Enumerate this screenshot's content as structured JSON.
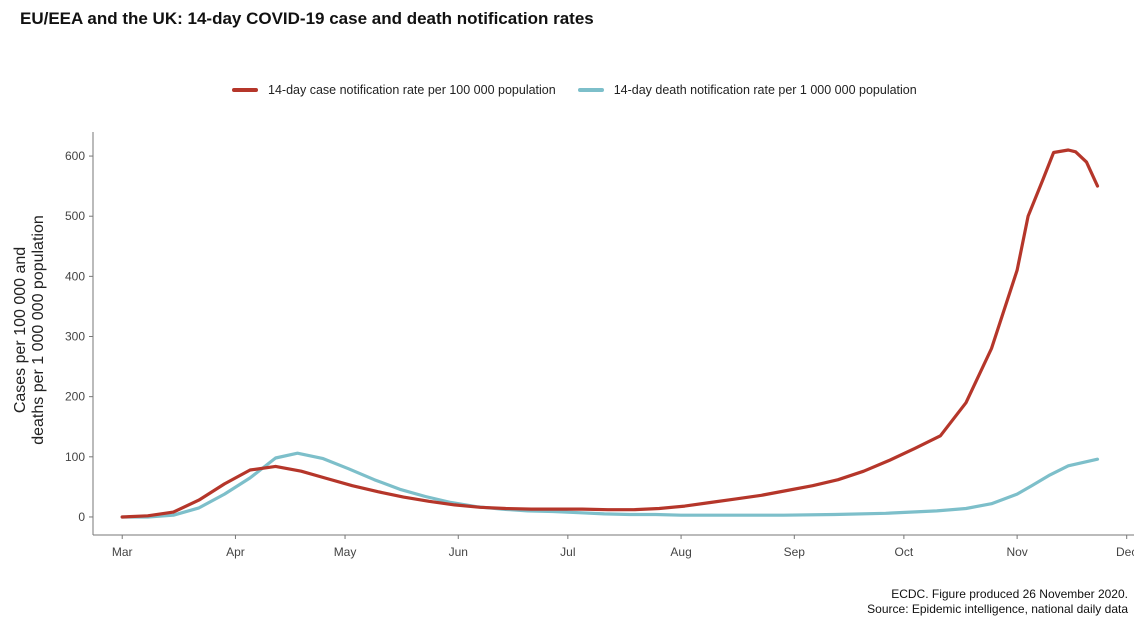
{
  "chart_data": {
    "type": "line",
    "title": "EU/EEA and the UK: 14-day COVID-19 case and death notification rates",
    "ylabel_line1": "Cases per 100 000 and",
    "ylabel_line2": "deaths per 1 000 000 population",
    "xlabel": "",
    "x_tick_labels": [
      "Mar",
      "Apr",
      "May",
      "Jun",
      "Jul",
      "Aug",
      "Sep",
      "Oct",
      "Nov",
      "Dec"
    ],
    "y_ticks": [
      0,
      100,
      200,
      300,
      400,
      500,
      600
    ],
    "ylim": [
      -30,
      640
    ],
    "xlim": [
      "2020-02-22",
      "2020-12-03"
    ],
    "legend_position": "top",
    "grid": false,
    "series": [
      {
        "name": "14-day case notification rate per 100 000 population",
        "color": "#b5362a",
        "points": [
          [
            "2020-03-01",
            0
          ],
          [
            "2020-03-08",
            2
          ],
          [
            "2020-03-15",
            8
          ],
          [
            "2020-03-22",
            28
          ],
          [
            "2020-03-29",
            55
          ],
          [
            "2020-04-05",
            78
          ],
          [
            "2020-04-12",
            84
          ],
          [
            "2020-04-19",
            76
          ],
          [
            "2020-04-26",
            64
          ],
          [
            "2020-05-03",
            52
          ],
          [
            "2020-05-10",
            42
          ],
          [
            "2020-05-17",
            33
          ],
          [
            "2020-05-24",
            26
          ],
          [
            "2020-05-31",
            20
          ],
          [
            "2020-06-07",
            16
          ],
          [
            "2020-06-14",
            14
          ],
          [
            "2020-06-21",
            13
          ],
          [
            "2020-06-28",
            13
          ],
          [
            "2020-07-05",
            13
          ],
          [
            "2020-07-12",
            12
          ],
          [
            "2020-07-19",
            12
          ],
          [
            "2020-07-26",
            14
          ],
          [
            "2020-08-02",
            18
          ],
          [
            "2020-08-09",
            24
          ],
          [
            "2020-08-16",
            30
          ],
          [
            "2020-08-23",
            36
          ],
          [
            "2020-08-30",
            44
          ],
          [
            "2020-09-06",
            52
          ],
          [
            "2020-09-13",
            62
          ],
          [
            "2020-09-20",
            76
          ],
          [
            "2020-09-27",
            94
          ],
          [
            "2020-10-04",
            114
          ],
          [
            "2020-10-11",
            135
          ],
          [
            "2020-10-18",
            190
          ],
          [
            "2020-10-25",
            280
          ],
          [
            "2020-11-01",
            410
          ],
          [
            "2020-11-04",
            500
          ],
          [
            "2020-11-08",
            560
          ],
          [
            "2020-11-11",
            606
          ],
          [
            "2020-11-15",
            610
          ],
          [
            "2020-11-17",
            607
          ],
          [
            "2020-11-20",
            590
          ],
          [
            "2020-11-23",
            550
          ]
        ]
      },
      {
        "name": "14-day death notification rate per 1 000 000 population",
        "color": "#7dbfca",
        "points": [
          [
            "2020-03-01",
            0
          ],
          [
            "2020-03-08",
            0
          ],
          [
            "2020-03-15",
            3
          ],
          [
            "2020-03-22",
            15
          ],
          [
            "2020-03-29",
            38
          ],
          [
            "2020-04-05",
            65
          ],
          [
            "2020-04-12",
            98
          ],
          [
            "2020-04-18",
            106
          ],
          [
            "2020-04-25",
            97
          ],
          [
            "2020-05-02",
            80
          ],
          [
            "2020-05-09",
            62
          ],
          [
            "2020-05-16",
            46
          ],
          [
            "2020-05-23",
            34
          ],
          [
            "2020-05-30",
            24
          ],
          [
            "2020-06-06",
            17
          ],
          [
            "2020-06-13",
            13
          ],
          [
            "2020-06-20",
            10
          ],
          [
            "2020-06-27",
            9
          ],
          [
            "2020-07-04",
            7
          ],
          [
            "2020-07-11",
            5
          ],
          [
            "2020-07-18",
            4
          ],
          [
            "2020-07-25",
            4
          ],
          [
            "2020-08-01",
            3
          ],
          [
            "2020-08-15",
            3
          ],
          [
            "2020-08-29",
            3
          ],
          [
            "2020-09-12",
            4
          ],
          [
            "2020-09-26",
            6
          ],
          [
            "2020-10-10",
            10
          ],
          [
            "2020-10-18",
            14
          ],
          [
            "2020-10-25",
            22
          ],
          [
            "2020-11-01",
            38
          ],
          [
            "2020-11-05",
            52
          ],
          [
            "2020-11-10",
            70
          ],
          [
            "2020-11-15",
            85
          ],
          [
            "2020-11-23",
            96
          ]
        ]
      }
    ]
  },
  "caption_line1": "ECDC. Figure produced 26 November 2020.",
  "caption_line2": "Source: Epidemic intelligence, national daily data"
}
